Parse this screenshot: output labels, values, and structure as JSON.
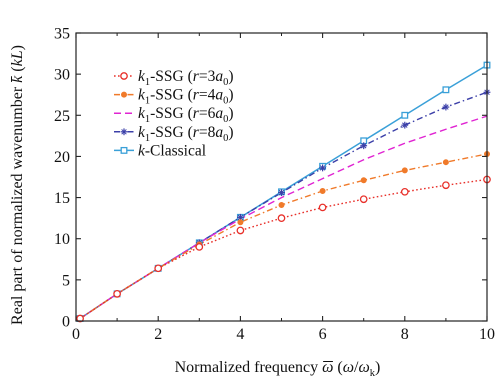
{
  "chart_data": {
    "type": "line",
    "xlabel": {
      "parts": [
        {
          "text": "Normalized frequency ",
          "style": "normal"
        },
        {
          "text": "ω",
          "style": "italic",
          "overbar": true
        },
        {
          "text": " (",
          "style": "normal"
        },
        {
          "text": "ω",
          "style": "italic"
        },
        {
          "text": "/",
          "style": "normal"
        },
        {
          "text": "ω",
          "style": "italic"
        },
        {
          "text": "k",
          "style": "sub"
        },
        {
          "text": ")",
          "style": "normal"
        }
      ]
    },
    "ylabel": {
      "parts": [
        {
          "text": "Real part of normalized wavenumber ",
          "style": "normal"
        },
        {
          "text": "k",
          "style": "italic",
          "overbar": true
        },
        {
          "text": " (",
          "style": "normal"
        },
        {
          "text": "kL",
          "style": "italic"
        },
        {
          "text": ")",
          "style": "normal"
        }
      ]
    },
    "xlim": [
      0,
      10
    ],
    "ylim": [
      0,
      35
    ],
    "xticks": [
      "0",
      "2",
      "4",
      "6",
      "8",
      "10"
    ],
    "yticks": [
      "0",
      "5",
      "10",
      "15",
      "20",
      "25",
      "30",
      "35"
    ],
    "xtick_values": [
      0,
      2,
      4,
      6,
      8,
      10
    ],
    "ytick_values": [
      0,
      5,
      10,
      15,
      20,
      25,
      30,
      35
    ],
    "grid": false,
    "legend_position": "top-left",
    "x": [
      0.1,
      1,
      2,
      3,
      4,
      5,
      6,
      7,
      8,
      9,
      10
    ],
    "series": [
      {
        "legend": [
          {
            "text": "k",
            "style": "italic"
          },
          {
            "text": "1",
            "style": "sub"
          },
          {
            "text": "-SSG (",
            "style": "normal"
          },
          {
            "text": "r",
            "style": "italic"
          },
          {
            "text": "=3",
            "style": "normal"
          },
          {
            "text": "a",
            "style": "italic"
          },
          {
            "text": "0",
            "style": "sub"
          },
          {
            "text": ")",
            "style": "normal"
          }
        ],
        "color": "#e8302a",
        "line_style": "dotted",
        "marker": "open-circle",
        "values": [
          0.3,
          3.3,
          6.4,
          9.0,
          11.0,
          12.5,
          13.8,
          14.8,
          15.7,
          16.5,
          17.2
        ]
      },
      {
        "legend": [
          {
            "text": "k",
            "style": "italic"
          },
          {
            "text": "1",
            "style": "sub"
          },
          {
            "text": "-SSG (",
            "style": "normal"
          },
          {
            "text": "r",
            "style": "italic"
          },
          {
            "text": "=4",
            "style": "normal"
          },
          {
            "text": "a",
            "style": "italic"
          },
          {
            "text": "0",
            "style": "sub"
          },
          {
            "text": ")",
            "style": "normal"
          }
        ],
        "color": "#f07a2a",
        "line_style": "dash-dot",
        "marker": "filled-circle",
        "values": [
          0.3,
          3.3,
          6.4,
          9.3,
          12.0,
          14.1,
          15.8,
          17.1,
          18.3,
          19.3,
          20.3
        ]
      },
      {
        "legend": [
          {
            "text": "k",
            "style": "italic"
          },
          {
            "text": "1",
            "style": "sub"
          },
          {
            "text": "-SSG (",
            "style": "normal"
          },
          {
            "text": "r",
            "style": "italic"
          },
          {
            "text": "=6",
            "style": "normal"
          },
          {
            "text": "a",
            "style": "italic"
          },
          {
            "text": "0",
            "style": "sub"
          },
          {
            "text": ")",
            "style": "normal"
          }
        ],
        "color": "#e024d2",
        "line_style": "dashed",
        "marker": "none",
        "values": [
          0.3,
          3.3,
          6.4,
          9.5,
          12.4,
          15.0,
          17.3,
          19.6,
          21.6,
          23.3,
          24.9
        ]
      },
      {
        "legend": [
          {
            "text": "k",
            "style": "italic"
          },
          {
            "text": "1",
            "style": "sub"
          },
          {
            "text": "-SSG (",
            "style": "normal"
          },
          {
            "text": "r",
            "style": "italic"
          },
          {
            "text": "=8",
            "style": "normal"
          },
          {
            "text": "a",
            "style": "italic"
          },
          {
            "text": "0",
            "style": "sub"
          },
          {
            "text": ")",
            "style": "normal"
          }
        ],
        "color": "#3b3fa8",
        "line_style": "dash-dot",
        "marker": "star",
        "values": [
          0.3,
          3.3,
          6.4,
          9.5,
          12.6,
          15.6,
          18.6,
          21.3,
          23.8,
          26.0,
          27.8
        ]
      },
      {
        "legend": [
          {
            "text": "k",
            "style": "italic"
          },
          {
            "text": "-Classical",
            "style": "normal"
          }
        ],
        "color": "#3aa0d8",
        "line_style": "solid",
        "marker": "open-square",
        "values": [
          0.3,
          3.3,
          6.4,
          9.5,
          12.6,
          15.7,
          18.8,
          21.9,
          25.0,
          28.1,
          31.1
        ]
      }
    ]
  }
}
